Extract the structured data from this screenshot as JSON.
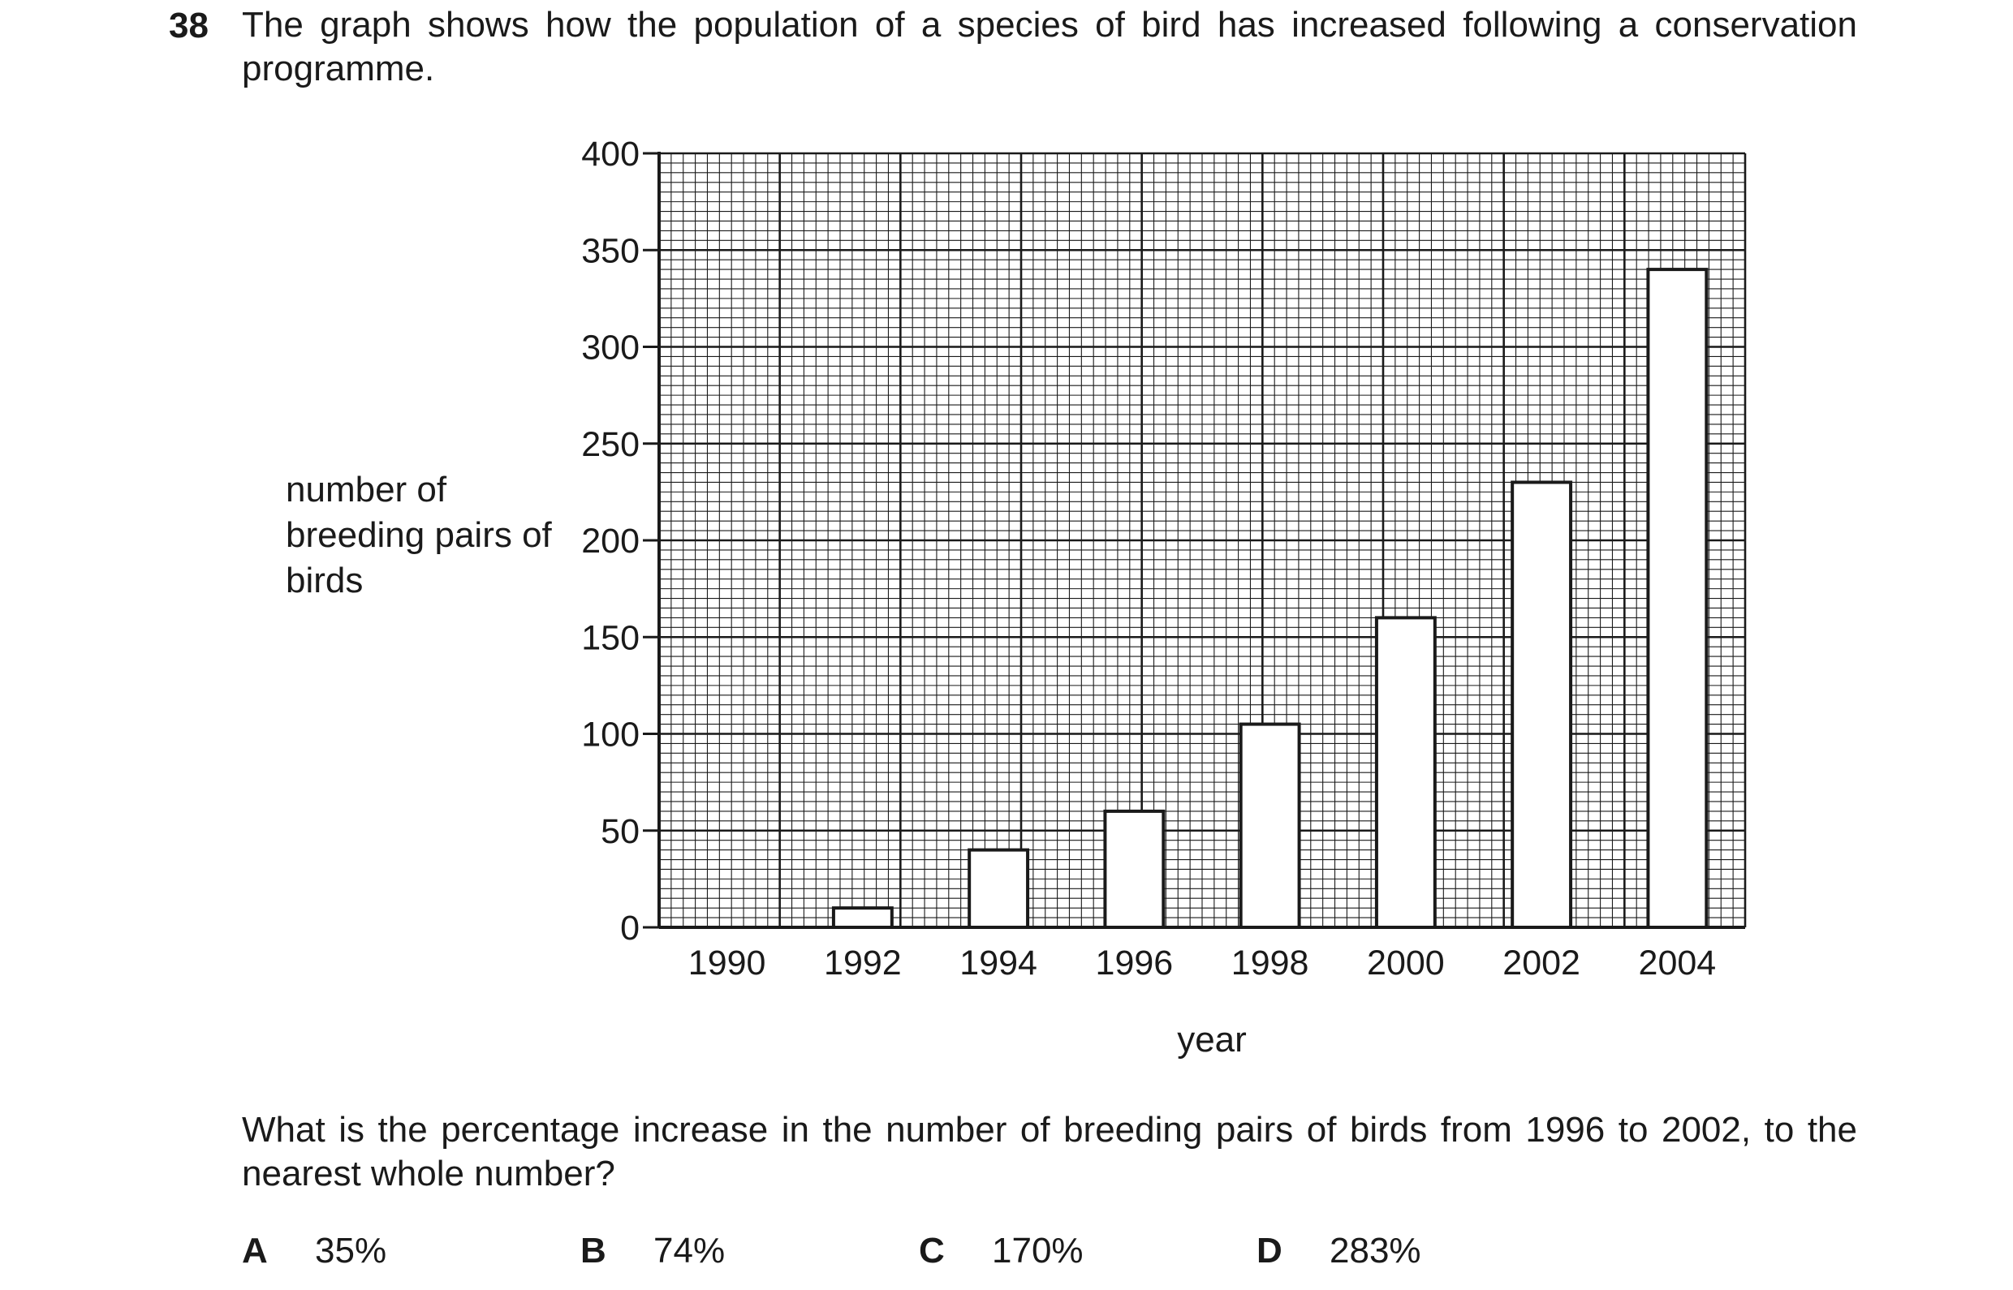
{
  "question": {
    "number": "38",
    "stem": "The graph shows how the population of a species of bird has increased following a conservation programme.",
    "prompt": "What is the percentage increase in the number of breeding pairs of birds from 1996 to 2002, to the nearest whole number?",
    "options": [
      {
        "letter": "A",
        "text": "35%"
      },
      {
        "letter": "B",
        "text": "74%"
      },
      {
        "letter": "C",
        "text": "170%"
      },
      {
        "letter": "D",
        "text": "283%"
      }
    ]
  },
  "chart_data": {
    "type": "bar",
    "title": "",
    "xlabel": "year",
    "ylabel": "number of breeding pairs of birds",
    "categories": [
      "1990",
      "1992",
      "1994",
      "1996",
      "1998",
      "2000",
      "2002",
      "2004"
    ],
    "values": [
      0,
      10,
      40,
      60,
      105,
      160,
      230,
      340
    ],
    "ylim": [
      0,
      400
    ],
    "yticks": [
      0,
      50,
      100,
      150,
      200,
      250,
      300,
      350,
      400
    ],
    "grid": true,
    "minor_grid": true,
    "bar_fill": "#ffffff",
    "bar_stroke": "#1a1a1a"
  }
}
